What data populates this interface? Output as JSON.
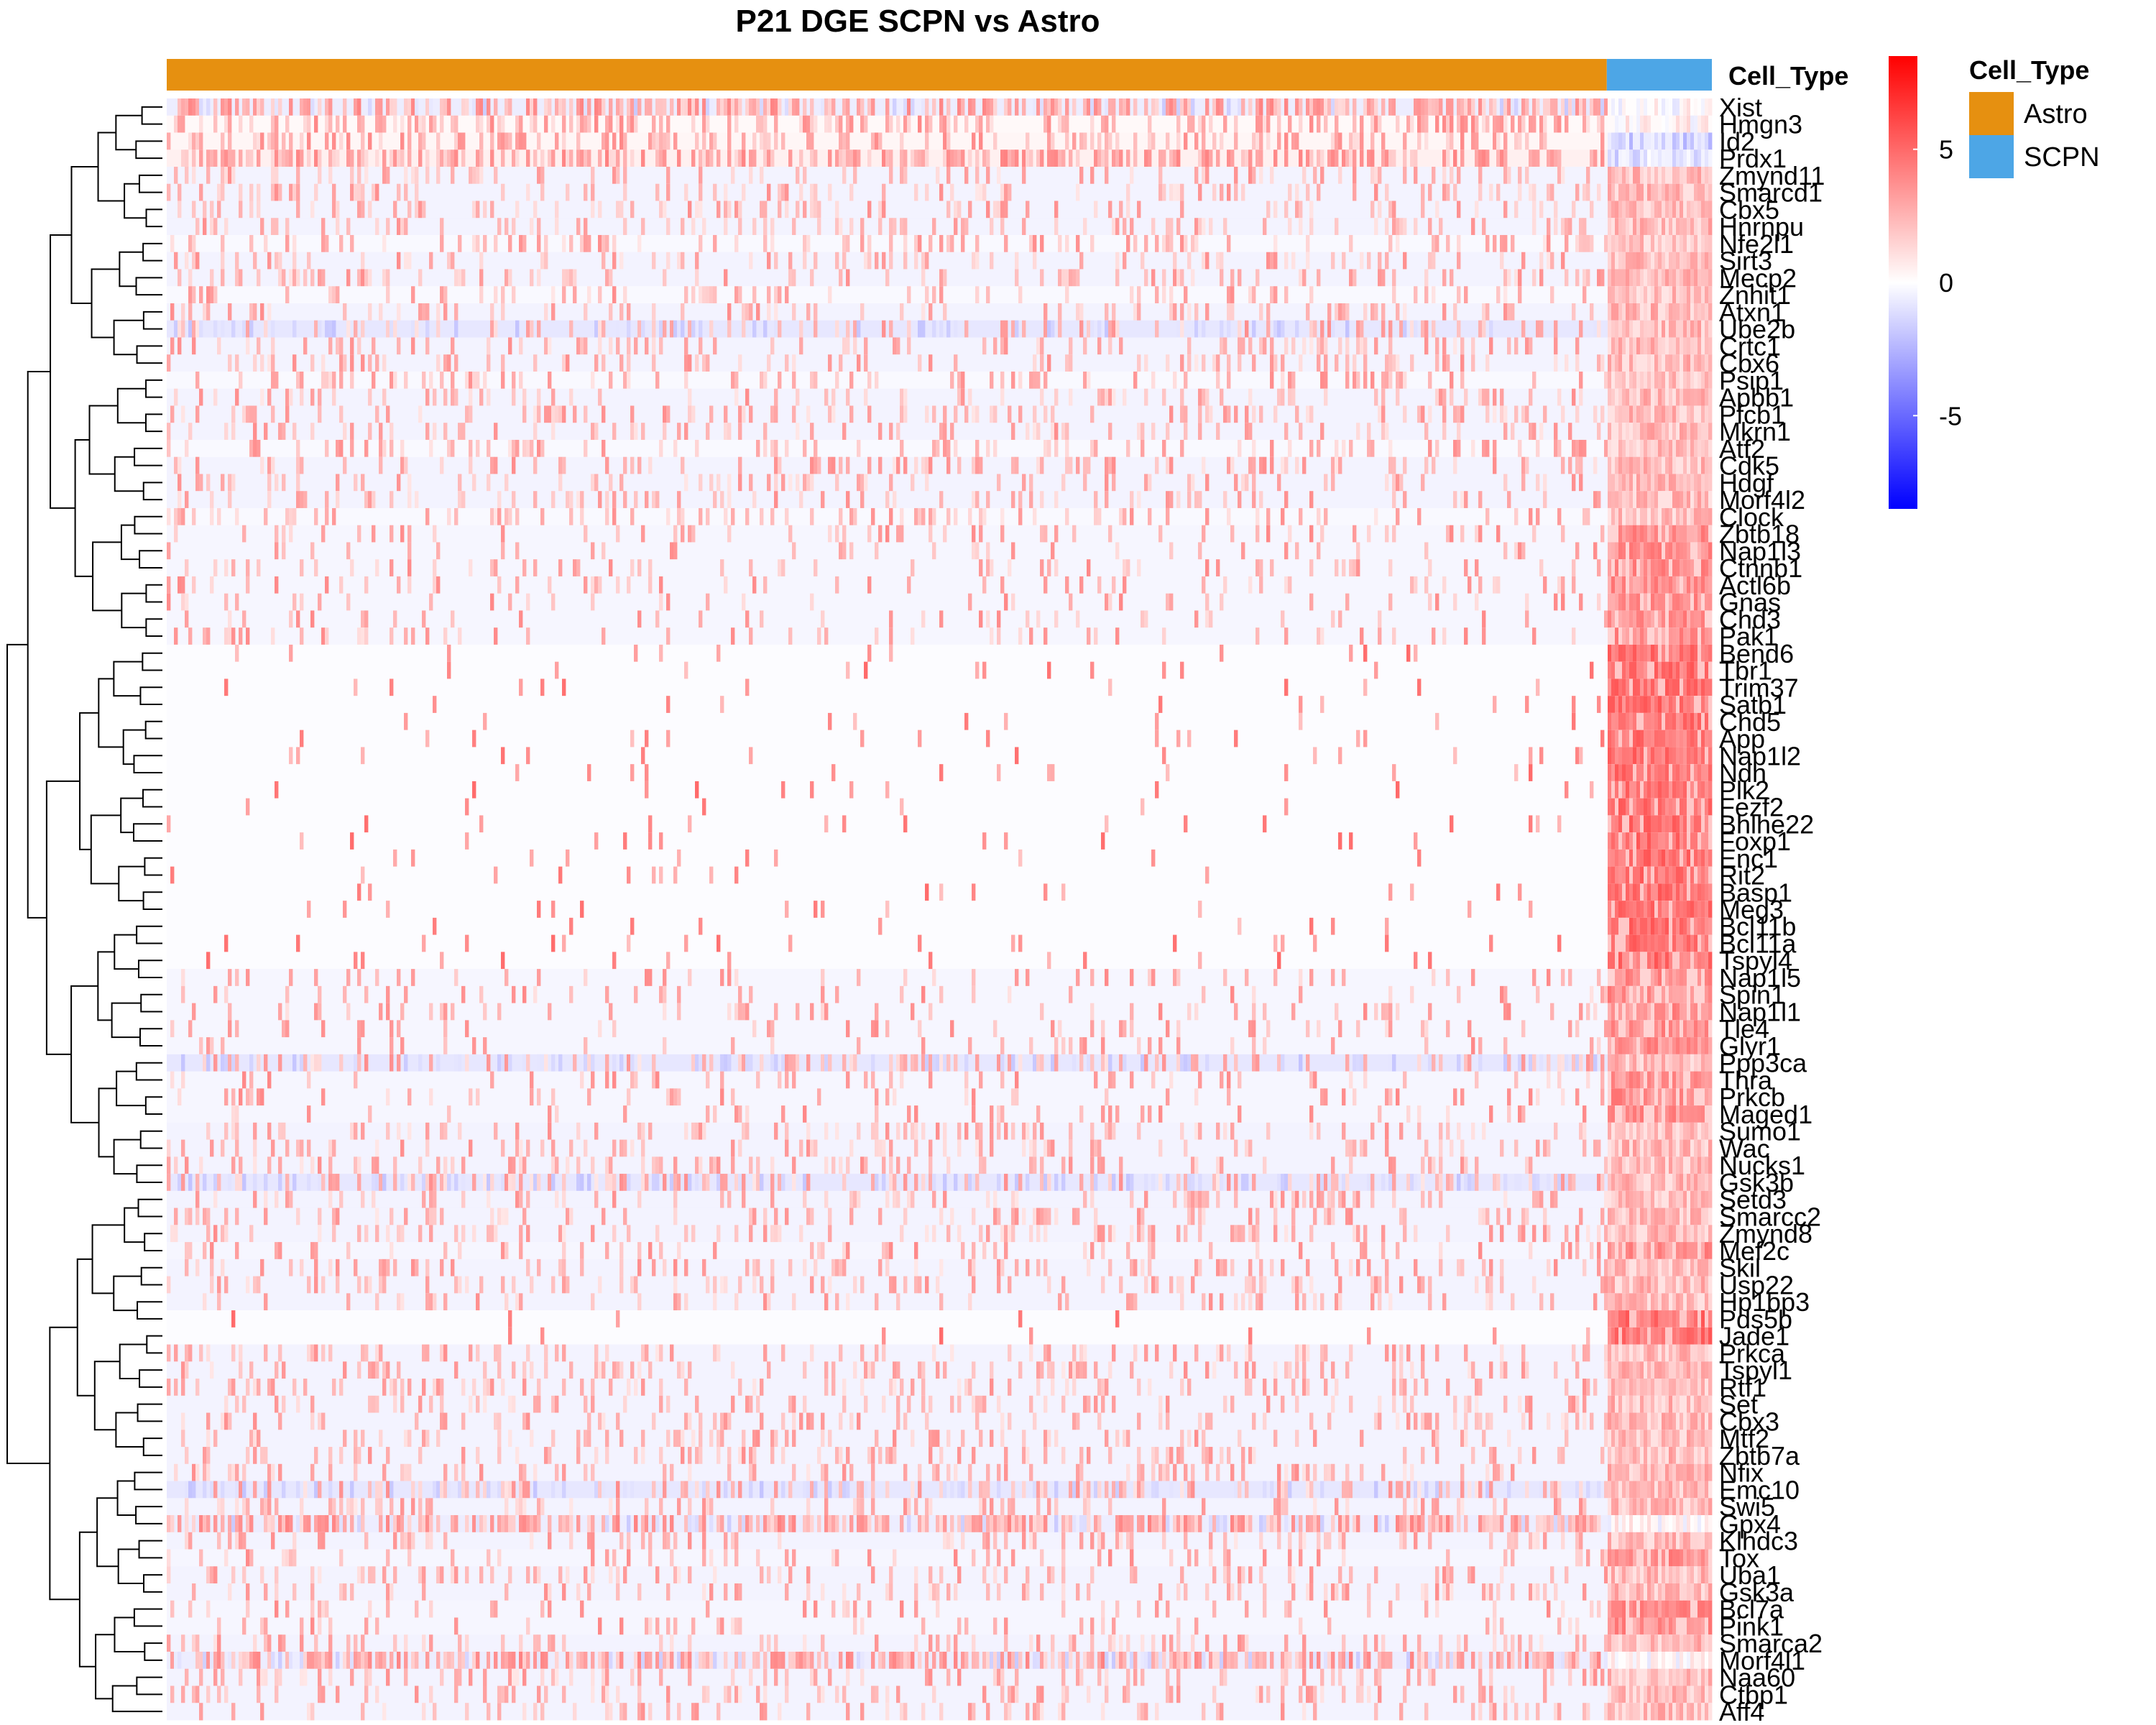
{
  "chart_data": {
    "type": "heatmap",
    "title": "P21 DGE SCPN vs Astro",
    "annotation": {
      "name": "Cell_Type",
      "groups": [
        {
          "label": "Astro",
          "color": "#E69010",
          "fraction": 0.932
        },
        {
          "label": "SCPN",
          "color": "#4DA6E6",
          "fraction": 0.068
        }
      ]
    },
    "color_scale": {
      "min": -8.5,
      "max": 8.5,
      "low_color": "#0000FF",
      "mid_color": "#FFFFFF",
      "high_color": "#FF0000",
      "ticks": [
        {
          "value": 5,
          "label": "5"
        },
        {
          "value": 0,
          "label": "0"
        },
        {
          "value": -5,
          "label": "-5"
        }
      ]
    },
    "legend": {
      "title": "Cell_Type",
      "position": "top-right",
      "items": [
        {
          "label": "Astro",
          "color": "#E69010"
        },
        {
          "label": "SCPN",
          "color": "#4DA6E6"
        }
      ]
    },
    "dendrogram": "rows",
    "rows": [
      {
        "gene": "Xist",
        "base": -0.6,
        "density": 0.55,
        "astro": 1.2,
        "scpn": 0.2
      },
      {
        "gene": "Hmgn3",
        "base": 0.2,
        "density": 0.45,
        "astro": 1.0,
        "scpn": 0.4
      },
      {
        "gene": "Id2",
        "base": 0.3,
        "density": 0.35,
        "astro": 1.0,
        "scpn": -1.5
      },
      {
        "gene": "Prdx1",
        "base": 0.5,
        "density": 0.55,
        "astro": 1.2,
        "scpn": -1.0
      },
      {
        "gene": "Zmynd11",
        "base": -0.4,
        "density": 0.22,
        "astro": 0.8,
        "scpn": 2.4
      },
      {
        "gene": "Smarcd1",
        "base": -0.4,
        "density": 0.22,
        "astro": 0.8,
        "scpn": 2.4
      },
      {
        "gene": "Cbx5",
        "base": -0.4,
        "density": 0.22,
        "astro": 0.8,
        "scpn": 2.4
      },
      {
        "gene": "Hnrnpu",
        "base": -0.4,
        "density": 0.22,
        "astro": 0.8,
        "scpn": 2.4
      },
      {
        "gene": "Nfe2l1",
        "base": -0.2,
        "density": 0.22,
        "astro": 0.8,
        "scpn": 2.2
      },
      {
        "gene": "Sirt3",
        "base": -0.4,
        "density": 0.22,
        "astro": 0.8,
        "scpn": 2.4
      },
      {
        "gene": "Mecp2",
        "base": -0.4,
        "density": 0.22,
        "astro": 0.8,
        "scpn": 2.4
      },
      {
        "gene": "Znhit1",
        "base": -0.2,
        "density": 0.22,
        "astro": 0.8,
        "scpn": 2.2
      },
      {
        "gene": "Atxn1",
        "base": -0.4,
        "density": 0.22,
        "astro": 0.8,
        "scpn": 2.4
      },
      {
        "gene": "Ube2b",
        "base": -0.8,
        "density": 0.22,
        "astro": 0.8,
        "scpn": 2.4
      },
      {
        "gene": "Crtc1",
        "base": -0.4,
        "density": 0.22,
        "astro": 0.8,
        "scpn": 2.4
      },
      {
        "gene": "Cbx6",
        "base": -0.4,
        "density": 0.22,
        "astro": 0.8,
        "scpn": 2.4
      },
      {
        "gene": "Psip1",
        "base": -0.2,
        "density": 0.22,
        "astro": 0.8,
        "scpn": 2.2
      },
      {
        "gene": "Apbb1",
        "base": -0.4,
        "density": 0.22,
        "astro": 0.8,
        "scpn": 2.4
      },
      {
        "gene": "Pfcb1",
        "base": -0.4,
        "density": 0.22,
        "astro": 0.8,
        "scpn": 2.4
      },
      {
        "gene": "Mkrn1",
        "base": -0.4,
        "density": 0.22,
        "astro": 0.8,
        "scpn": 2.4
      },
      {
        "gene": "Atf2",
        "base": -0.2,
        "density": 0.22,
        "astro": 0.8,
        "scpn": 2.2
      },
      {
        "gene": "Cdk5",
        "base": -0.4,
        "density": 0.22,
        "astro": 0.8,
        "scpn": 2.4
      },
      {
        "gene": "Hdgf",
        "base": -0.4,
        "density": 0.22,
        "astro": 0.8,
        "scpn": 2.4
      },
      {
        "gene": "Morf4l2",
        "base": -0.4,
        "density": 0.22,
        "astro": 0.8,
        "scpn": 2.4
      },
      {
        "gene": "Clock",
        "base": -0.2,
        "density": 0.22,
        "astro": 0.8,
        "scpn": 2.2
      },
      {
        "gene": "Zbtb18",
        "base": -0.3,
        "density": 0.12,
        "astro": 1.0,
        "scpn": 3.6
      },
      {
        "gene": "Nap1l3",
        "base": -0.3,
        "density": 0.12,
        "astro": 1.0,
        "scpn": 3.6
      },
      {
        "gene": "Ctnnb1",
        "base": -0.3,
        "density": 0.12,
        "astro": 1.0,
        "scpn": 3.6
      },
      {
        "gene": "Actl6b",
        "base": -0.3,
        "density": 0.12,
        "astro": 1.0,
        "scpn": 3.6
      },
      {
        "gene": "Gnas",
        "base": -0.3,
        "density": 0.12,
        "astro": 1.0,
        "scpn": 3.6
      },
      {
        "gene": "Chd3",
        "base": -0.3,
        "density": 0.12,
        "astro": 1.0,
        "scpn": 3.6
      },
      {
        "gene": "Pak1",
        "base": -0.3,
        "density": 0.12,
        "astro": 1.0,
        "scpn": 3.6
      },
      {
        "gene": "Bend6",
        "base": -0.1,
        "density": 0.03,
        "astro": 2.0,
        "scpn": 4.6
      },
      {
        "gene": "Tbr1",
        "base": -0.1,
        "density": 0.03,
        "astro": 2.0,
        "scpn": 4.6
      },
      {
        "gene": "Trim37",
        "base": -0.1,
        "density": 0.03,
        "astro": 2.0,
        "scpn": 4.6
      },
      {
        "gene": "Satb1",
        "base": -0.1,
        "density": 0.03,
        "astro": 2.0,
        "scpn": 4.6
      },
      {
        "gene": "Chd5",
        "base": -0.1,
        "density": 0.03,
        "astro": 2.0,
        "scpn": 4.6
      },
      {
        "gene": "App",
        "base": -0.1,
        "density": 0.03,
        "astro": 2.0,
        "scpn": 4.6
      },
      {
        "gene": "Nap1l2",
        "base": -0.1,
        "density": 0.03,
        "astro": 2.0,
        "scpn": 4.6
      },
      {
        "gene": "Ndn",
        "base": -0.1,
        "density": 0.03,
        "astro": 2.0,
        "scpn": 4.6
      },
      {
        "gene": "Plk2",
        "base": -0.1,
        "density": 0.03,
        "astro": 2.0,
        "scpn": 4.6
      },
      {
        "gene": "Fezf2",
        "base": -0.1,
        "density": 0.03,
        "astro": 2.0,
        "scpn": 4.6
      },
      {
        "gene": "Bhlhe22",
        "base": -0.1,
        "density": 0.03,
        "astro": 2.0,
        "scpn": 4.6
      },
      {
        "gene": "Foxp1",
        "base": -0.1,
        "density": 0.03,
        "astro": 2.0,
        "scpn": 4.6
      },
      {
        "gene": "Enc1",
        "base": -0.1,
        "density": 0.03,
        "astro": 2.0,
        "scpn": 4.6
      },
      {
        "gene": "Rit2",
        "base": -0.1,
        "density": 0.03,
        "astro": 2.0,
        "scpn": 4.6
      },
      {
        "gene": "Basp1",
        "base": -0.1,
        "density": 0.03,
        "astro": 2.0,
        "scpn": 4.6
      },
      {
        "gene": "Meg3",
        "base": -0.1,
        "density": 0.03,
        "astro": 2.0,
        "scpn": 4.6
      },
      {
        "gene": "Bcl11b",
        "base": -0.1,
        "density": 0.03,
        "astro": 2.0,
        "scpn": 4.6
      },
      {
        "gene": "Bcl11a",
        "base": -0.1,
        "density": 0.03,
        "astro": 2.0,
        "scpn": 4.6
      },
      {
        "gene": "Tspyl4",
        "base": -0.1,
        "density": 0.03,
        "astro": 2.0,
        "scpn": 4.6
      },
      {
        "gene": "Nap1l5",
        "base": -0.3,
        "density": 0.12,
        "astro": 1.0,
        "scpn": 3.6
      },
      {
        "gene": "Spin1",
        "base": -0.3,
        "density": 0.12,
        "astro": 1.0,
        "scpn": 3.6
      },
      {
        "gene": "Nap1l1",
        "base": -0.3,
        "density": 0.12,
        "astro": 1.0,
        "scpn": 3.6
      },
      {
        "gene": "Tle4",
        "base": -0.3,
        "density": 0.12,
        "astro": 1.0,
        "scpn": 3.6
      },
      {
        "gene": "Glyr1",
        "base": -0.3,
        "density": 0.12,
        "astro": 1.0,
        "scpn": 3.6
      },
      {
        "gene": "Ppp3ca",
        "base": -0.8,
        "density": 0.22,
        "astro": 0.8,
        "scpn": 2.4
      },
      {
        "gene": "Thra",
        "base": -0.3,
        "density": 0.12,
        "astro": 1.0,
        "scpn": 3.6
      },
      {
        "gene": "Prkcb",
        "base": -0.3,
        "density": 0.12,
        "astro": 1.0,
        "scpn": 3.6
      },
      {
        "gene": "Maged1",
        "base": -0.3,
        "density": 0.12,
        "astro": 1.0,
        "scpn": 3.6
      },
      {
        "gene": "Sumo1",
        "base": -0.4,
        "density": 0.22,
        "astro": 0.8,
        "scpn": 2.4
      },
      {
        "gene": "Wac",
        "base": -0.4,
        "density": 0.22,
        "astro": 0.8,
        "scpn": 2.4
      },
      {
        "gene": "Nucks1",
        "base": -0.4,
        "density": 0.22,
        "astro": 0.8,
        "scpn": 2.4
      },
      {
        "gene": "Gsk3b",
        "base": -0.8,
        "density": 0.22,
        "astro": 0.8,
        "scpn": 2.4
      },
      {
        "gene": "Setd3",
        "base": -0.4,
        "density": 0.22,
        "astro": 0.8,
        "scpn": 2.4
      },
      {
        "gene": "Smarcc2",
        "base": -0.4,
        "density": 0.22,
        "astro": 0.8,
        "scpn": 2.4
      },
      {
        "gene": "Zmynd8",
        "base": -0.4,
        "density": 0.22,
        "astro": 0.8,
        "scpn": 2.4
      },
      {
        "gene": "Mef2c",
        "base": -0.3,
        "density": 0.12,
        "astro": 1.0,
        "scpn": 3.6
      },
      {
        "gene": "Skil",
        "base": -0.4,
        "density": 0.22,
        "astro": 0.8,
        "scpn": 2.4
      },
      {
        "gene": "Usp22",
        "base": -0.4,
        "density": 0.22,
        "astro": 0.8,
        "scpn": 2.4
      },
      {
        "gene": "Hp1bp3",
        "base": -0.4,
        "density": 0.22,
        "astro": 0.8,
        "scpn": 2.4
      },
      {
        "gene": "Pds5b",
        "base": -0.1,
        "density": 0.03,
        "astro": 2.0,
        "scpn": 4.6
      },
      {
        "gene": "Jade1",
        "base": -0.1,
        "density": 0.03,
        "astro": 2.0,
        "scpn": 4.6
      },
      {
        "gene": "Prkca",
        "base": -0.4,
        "density": 0.22,
        "astro": 0.8,
        "scpn": 2.4
      },
      {
        "gene": "Tspyl1",
        "base": -0.4,
        "density": 0.22,
        "astro": 0.8,
        "scpn": 2.4
      },
      {
        "gene": "Rtf1",
        "base": -0.4,
        "density": 0.22,
        "astro": 0.8,
        "scpn": 2.4
      },
      {
        "gene": "Set",
        "base": -0.4,
        "density": 0.22,
        "astro": 0.8,
        "scpn": 2.4
      },
      {
        "gene": "Cbx3",
        "base": -0.4,
        "density": 0.22,
        "astro": 0.8,
        "scpn": 2.4
      },
      {
        "gene": "Mtf2",
        "base": -0.4,
        "density": 0.22,
        "astro": 0.8,
        "scpn": 2.4
      },
      {
        "gene": "Zbtb7a",
        "base": -0.4,
        "density": 0.22,
        "astro": 0.8,
        "scpn": 2.4
      },
      {
        "gene": "Nfix",
        "base": -0.4,
        "density": 0.22,
        "astro": 0.8,
        "scpn": 2.4
      },
      {
        "gene": "Emc10",
        "base": -0.8,
        "density": 0.22,
        "astro": 0.8,
        "scpn": 2.4
      },
      {
        "gene": "Swi5",
        "base": -0.4,
        "density": 0.22,
        "astro": 0.8,
        "scpn": 2.4
      },
      {
        "gene": "Gpx4",
        "base": -0.6,
        "density": 0.55,
        "astro": 1.2,
        "scpn": 0.2
      },
      {
        "gene": "Klhdc3",
        "base": -0.4,
        "density": 0.22,
        "astro": 0.8,
        "scpn": 2.4
      },
      {
        "gene": "Tox",
        "base": -0.3,
        "density": 0.12,
        "astro": 1.0,
        "scpn": 3.6
      },
      {
        "gene": "Uba1",
        "base": -0.4,
        "density": 0.22,
        "astro": 0.8,
        "scpn": 2.4
      },
      {
        "gene": "Gsk3a",
        "base": -0.4,
        "density": 0.22,
        "astro": 0.8,
        "scpn": 2.4
      },
      {
        "gene": "Bcl7a",
        "base": -0.3,
        "density": 0.12,
        "astro": 1.0,
        "scpn": 3.6
      },
      {
        "gene": "Pink1",
        "base": -0.3,
        "density": 0.12,
        "astro": 1.0,
        "scpn": 3.6
      },
      {
        "gene": "Smarca2",
        "base": -0.4,
        "density": 0.22,
        "astro": 0.8,
        "scpn": 2.4
      },
      {
        "gene": "Morf4l1",
        "base": -0.6,
        "density": 0.55,
        "astro": 1.2,
        "scpn": 0.2
      },
      {
        "gene": "Naa60",
        "base": -0.4,
        "density": 0.22,
        "astro": 0.8,
        "scpn": 2.4
      },
      {
        "gene": "Ctbp1",
        "base": -0.4,
        "density": 0.22,
        "astro": 0.8,
        "scpn": 2.4
      },
      {
        "gene": "Aff4",
        "base": -0.4,
        "density": 0.22,
        "astro": 0.8,
        "scpn": 2.4
      }
    ]
  }
}
